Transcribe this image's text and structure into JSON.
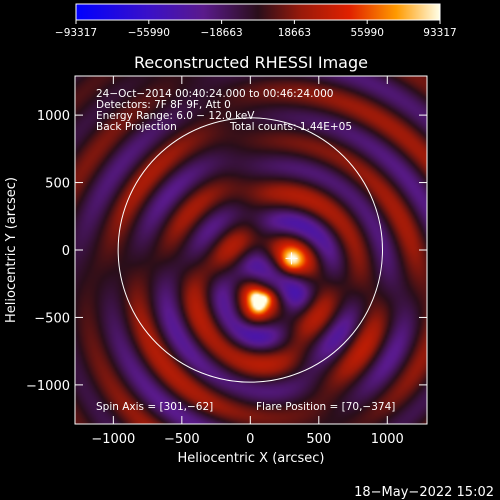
{
  "chart_data": {
    "type": "heatmap",
    "title": "Reconstructed RHESSI Image",
    "xlabel": "Heliocentric X (arcsec)",
    "ylabel": "Heliocentric Y (arcsec)",
    "xlim": [
      -1280,
      1290
    ],
    "ylim": [
      -1290,
      1290
    ],
    "x_ticks": [
      -1000,
      -500,
      0,
      500,
      1000
    ],
    "y_ticks": [
      1000,
      500,
      0,
      -500,
      -1000
    ],
    "x_tick_labels": [
      "−1000",
      "−500",
      "0",
      "500",
      "1000"
    ],
    "y_tick_labels": [
      "1000",
      "500",
      "0",
      "−500",
      "−1000"
    ],
    "colorbar": {
      "min": -93317,
      "max": 93317,
      "ticks": [
        -93317,
        -55990,
        -18663,
        18663,
        55990,
        93317
      ],
      "tick_labels": [
        "−93317",
        "−55990",
        "−18663",
        "18663",
        "55990",
        "93317"
      ]
    },
    "info_lines": [
      "24−Oct−2014 00:40:24.000 to 00:46:24.000",
      "Detectors: 7F 8F 9F, Att 0",
      "Energy Range: 6.0 − 12.0 keV",
      "Back Projection"
    ],
    "total_counts": "Total counts: 1.44E+05",
    "spin_axis_text": "Spin Axis = [301,−62]",
    "flare_position_text": "Flare Position = [70,−374]",
    "spin_axis": [
      301,
      -62
    ],
    "flare_position": [
      70,
      -374
    ],
    "solar_disk": {
      "center": [
        0,
        0
      ],
      "radius_arcsec": 965
    },
    "sources": [
      {
        "name": "main-source",
        "x": 70,
        "y": -374,
        "relative_intensity": 1.0
      },
      {
        "name": "secondary-source",
        "x": 300,
        "y": -80,
        "relative_intensity": 0.7
      }
    ]
  },
  "footer": {
    "timestamp": "18−May−2022 15:02"
  }
}
